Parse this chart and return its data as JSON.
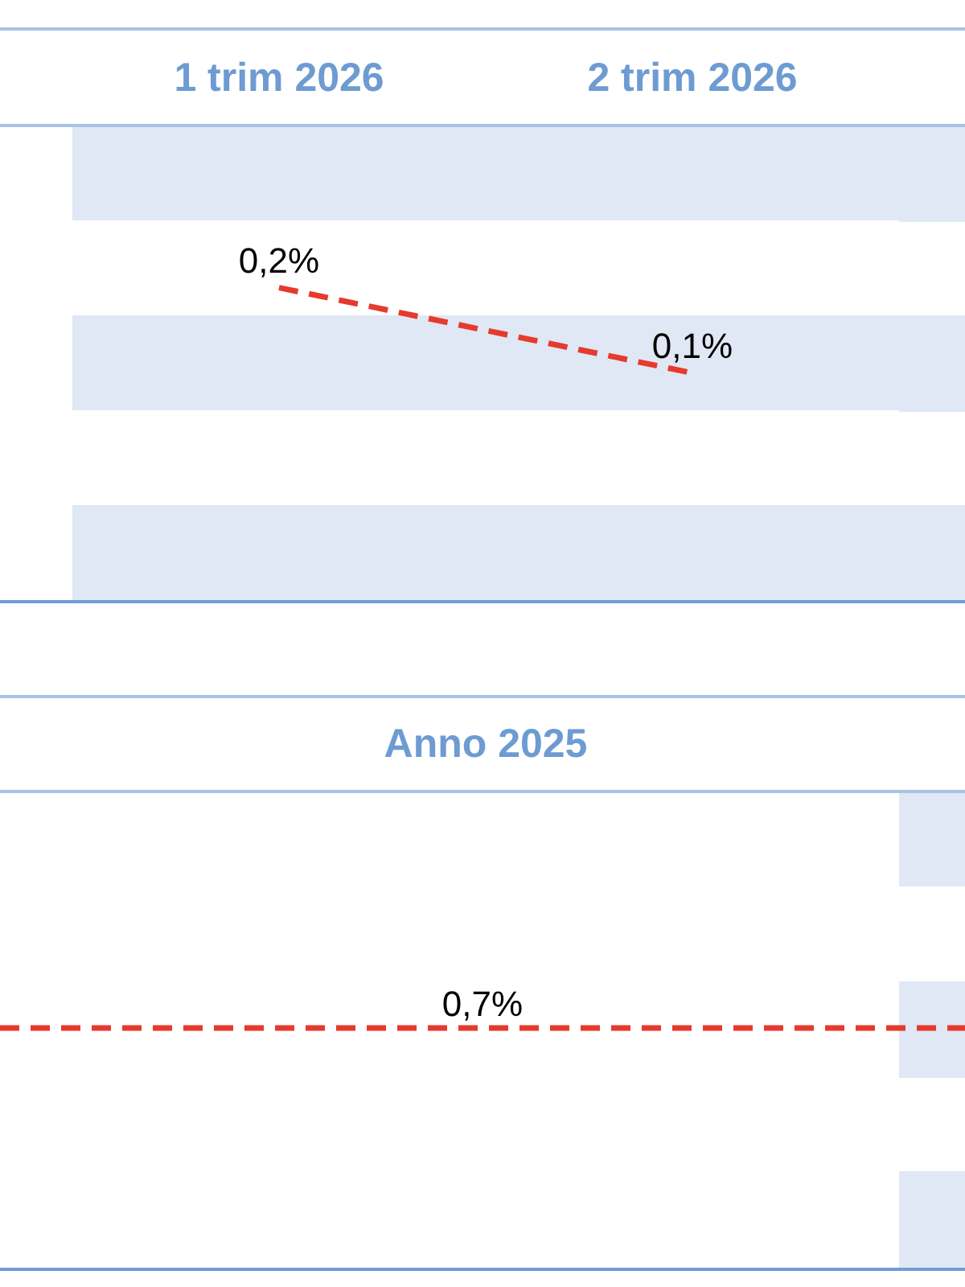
{
  "chart_data": [
    {
      "type": "line",
      "categories": [
        "1 trim 2026",
        "2 trim 2026"
      ],
      "series": [
        {
          "color": "#e63a2d",
          "values": [
            0.2,
            0.1
          ],
          "value_labels": [
            "0,2%",
            "0,1%"
          ]
        }
      ],
      "tick_labels": "x",
      "marker": "none",
      "line_style": "dashed",
      "bands": [
        {
          "axis": "x",
          "from": "1 trim 2026",
          "to": "2 trim 2026",
          "color": "#dfe8f4"
        }
      ]
    },
    {
      "type": "other",
      "categories": [
        "Anno 2025"
      ],
      "values": [
        0.7
      ],
      "value_labels": [
        "0,7%"
      ],
      "color": "#e63a2d"
    }
  ]
}
